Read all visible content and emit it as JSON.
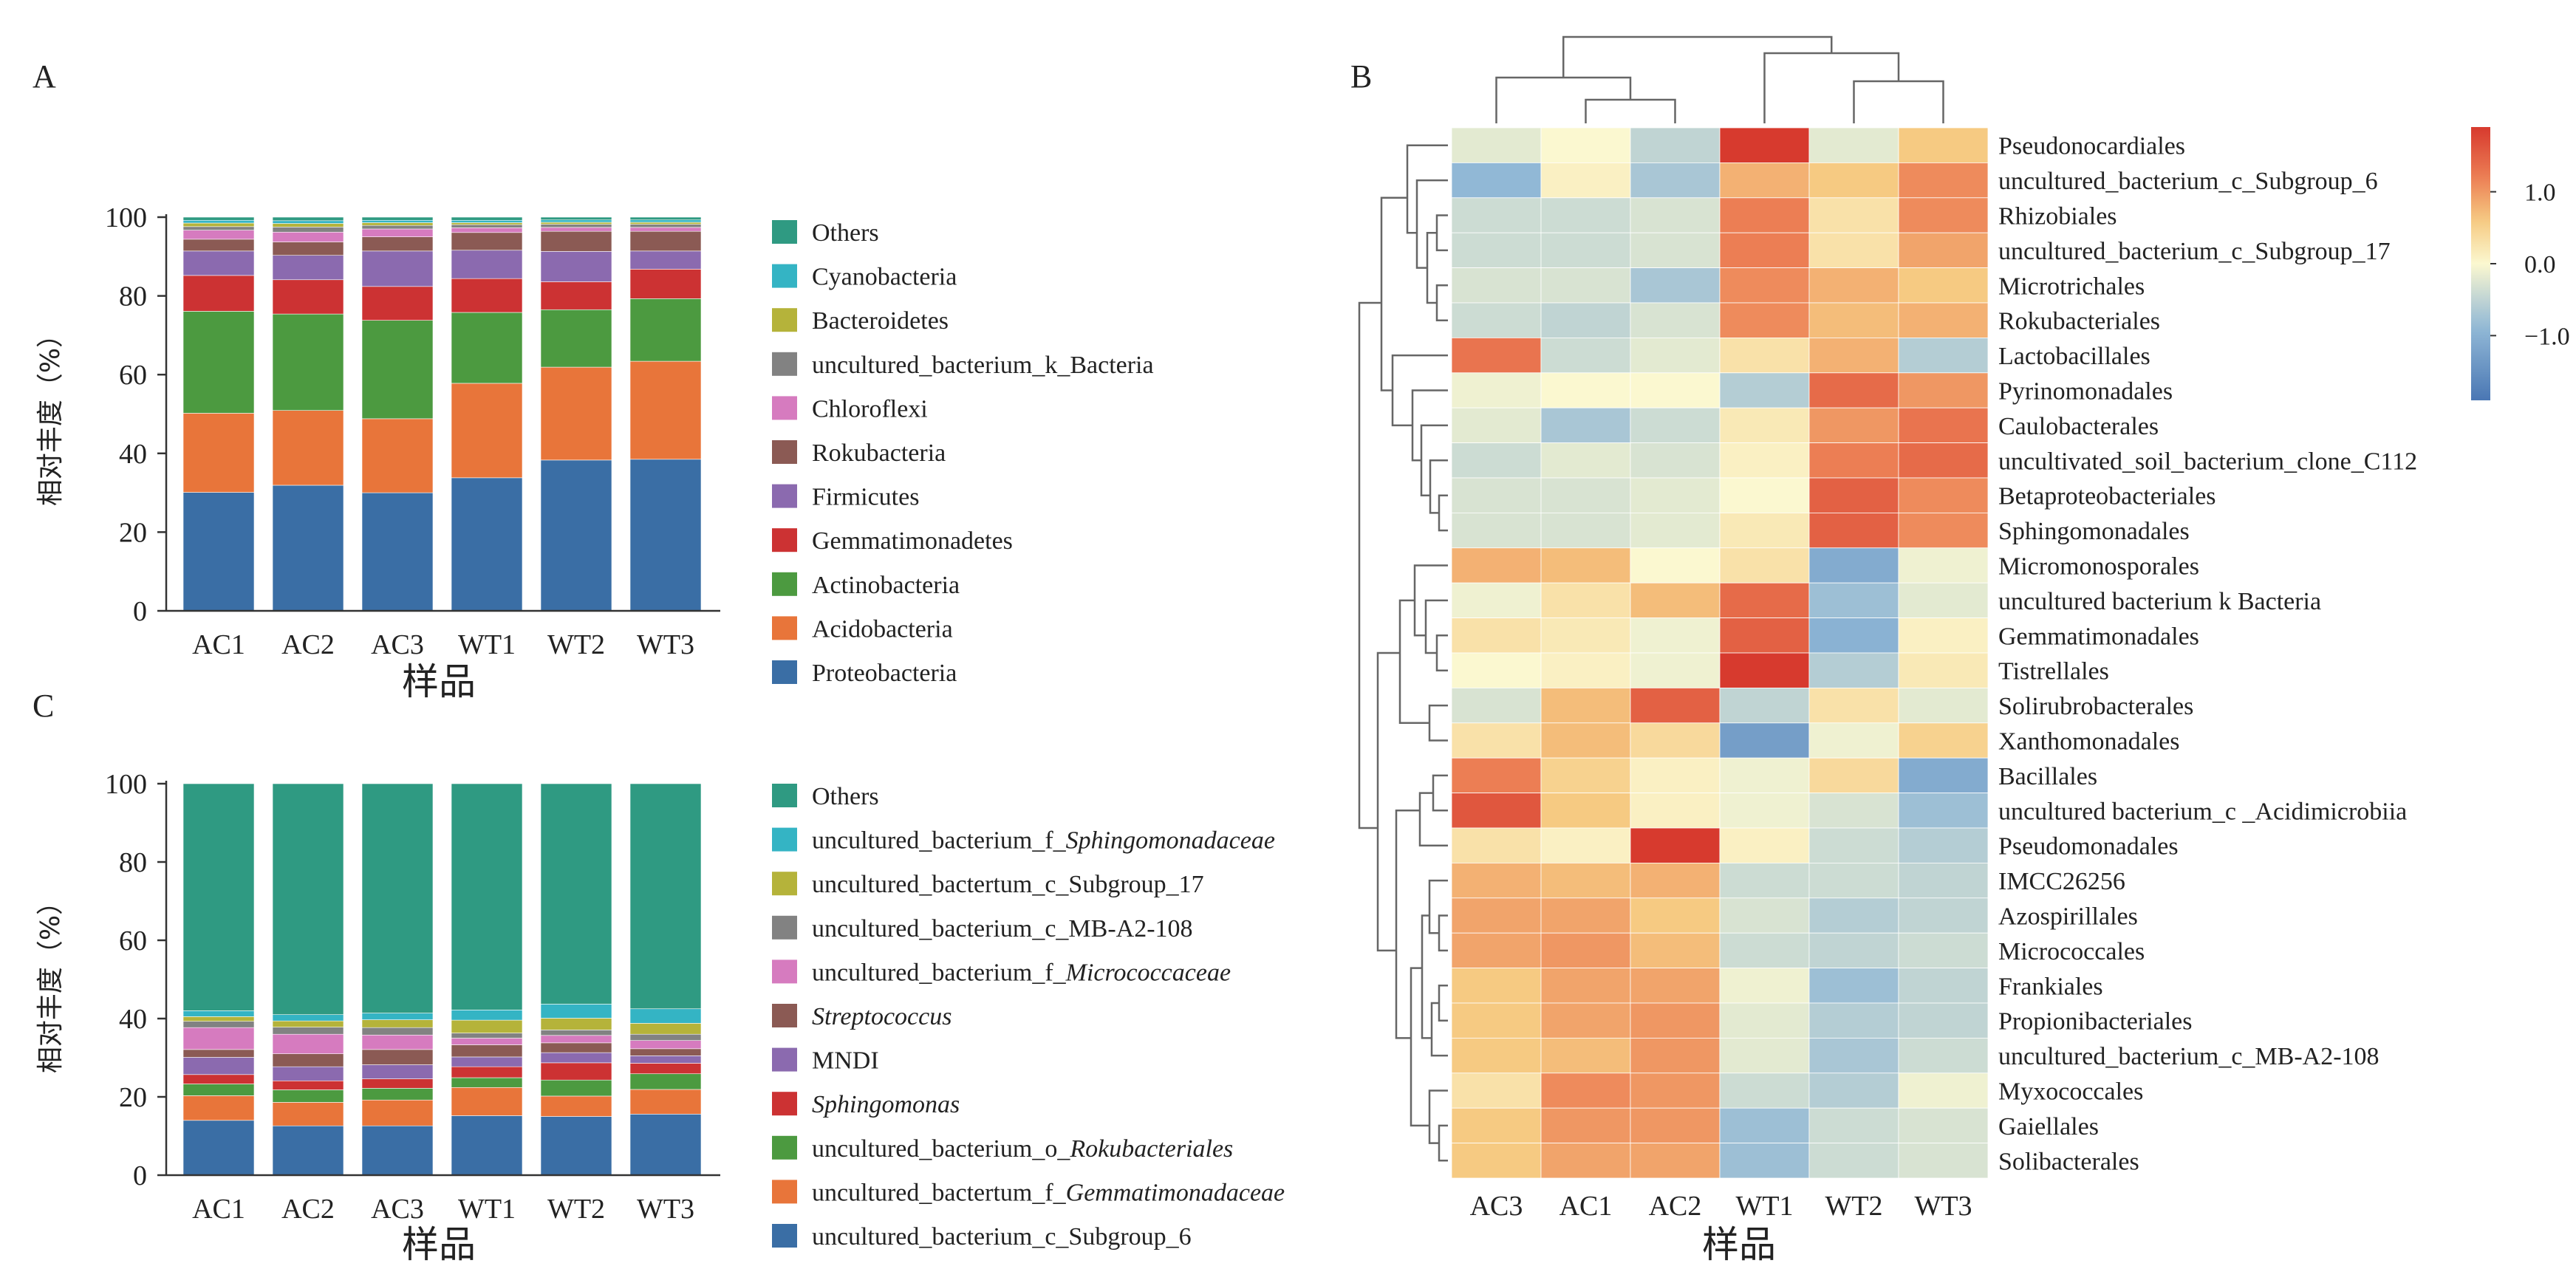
{
  "panels": {
    "a": "A",
    "b": "B",
    "c": "C"
  },
  "colors": {
    "stack": [
      "#3a6ea5",
      "#e8753a",
      "#4c9a40",
      "#cc3233",
      "#8b6aaf",
      "#8b5a54",
      "#d67bbf",
      "#828282",
      "#b5b33a",
      "#34b4c4",
      "#2f9a82"
    ],
    "heat_low": "#4a77b4",
    "heat_mid": "#fbf8d0",
    "heat_high": "#d73a2e"
  },
  "chart_data": [
    {
      "type": "bar",
      "stacked": true,
      "panel": "A",
      "categories": [
        "AC1",
        "AC2",
        "AC3",
        "WT1",
        "WT2",
        "WT3"
      ],
      "xlabel": "样品",
      "ylabel": "相对丰度（%）",
      "ylim": [
        0,
        100
      ],
      "yticks": [
        0,
        20,
        40,
        60,
        80,
        100
      ],
      "legend_position": "right",
      "series": [
        {
          "name": "Proteobacteria",
          "values": [
            30.1,
            31.9,
            30.0,
            33.8,
            38.3,
            38.5
          ]
        },
        {
          "name": "Acidobacteria",
          "values": [
            20.1,
            19.0,
            18.8,
            24.0,
            23.6,
            24.9
          ]
        },
        {
          "name": "Actinobacteria",
          "values": [
            25.9,
            24.5,
            25.0,
            18.0,
            14.6,
            15.9
          ]
        },
        {
          "name": "Gemmatimonadetes",
          "values": [
            9.1,
            8.7,
            8.6,
            8.6,
            7.1,
            7.5
          ]
        },
        {
          "name": "Firmicutes",
          "values": [
            6.2,
            6.2,
            9.0,
            7.2,
            7.7,
            4.6
          ]
        },
        {
          "name": "Rokubacteria",
          "values": [
            3.0,
            3.4,
            3.6,
            4.5,
            5.1,
            5.0
          ]
        },
        {
          "name": "Chloroflexi",
          "values": [
            2.3,
            2.5,
            2.0,
            1.2,
            1.0,
            1.0
          ]
        },
        {
          "name": "uncultured_bacterium_k_Bacteria",
          "values": [
            0.9,
            1.3,
            0.9,
            0.8,
            0.8,
            0.8
          ]
        },
        {
          "name": "Bacteroidetes",
          "values": [
            0.9,
            0.9,
            0.7,
            0.5,
            0.5,
            0.5
          ]
        },
        {
          "name": "Cyanobacteria",
          "values": [
            0.7,
            0.7,
            0.6,
            0.6,
            0.6,
            0.6
          ]
        },
        {
          "name": "Others",
          "values": [
            0.8,
            0.9,
            0.8,
            0.8,
            0.7,
            0.7
          ]
        }
      ]
    },
    {
      "type": "bar",
      "stacked": true,
      "panel": "C",
      "categories": [
        "AC1",
        "AC2",
        "AC3",
        "WT1",
        "WT2",
        "WT3"
      ],
      "xlabel": "样品",
      "ylabel": "相对丰度（%）",
      "ylim": [
        0,
        100
      ],
      "yticks": [
        0,
        20,
        40,
        60,
        80,
        100
      ],
      "legend_position": "right",
      "series": [
        {
          "name": "uncultured_bacterium_c_Subgroup_6",
          "prefix": "uncultured_bacterium_c_Subgroup_6",
          "italic": "",
          "values": [
            14.0,
            12.6,
            12.6,
            15.2,
            15.0,
            15.6
          ]
        },
        {
          "name": "uncultured_bactertum_f_Gemmatimonadaceae",
          "prefix": "uncultured_bactertum_f_",
          "italic": "Gemmatimonadaceae",
          "values": [
            6.3,
            6.0,
            6.6,
            7.2,
            5.2,
            6.3
          ]
        },
        {
          "name": "uncultured_bacterium_o_Rokubacteriales",
          "prefix": "uncultured_bacterium_o_",
          "italic": "Rokubacteriales",
          "values": [
            3.0,
            3.2,
            3.0,
            2.5,
            4.1,
            4.0
          ]
        },
        {
          "name": "Sphingomonas",
          "prefix": "",
          "italic": "Sphingomonas",
          "values": [
            2.4,
            2.3,
            2.4,
            2.8,
            4.4,
            2.7
          ]
        },
        {
          "name": "MNDI",
          "prefix": "MNDI",
          "italic": "",
          "values": [
            4.4,
            3.6,
            3.6,
            2.5,
            2.6,
            1.9
          ]
        },
        {
          "name": "Streptococcus",
          "prefix": "",
          "italic": "Streptococcus",
          "values": [
            2.0,
            3.3,
            3.9,
            3.1,
            2.5,
            1.8
          ]
        },
        {
          "name": "uncultured_bacterium_f_Micrococcaceae",
          "prefix": "uncultured_bacterium_f_",
          "italic": "Micrococcaceae",
          "values": [
            5.6,
            5.0,
            3.7,
            1.7,
            1.9,
            2.1
          ]
        },
        {
          "name": "uncultured_bacterium_c_MB-A2-108",
          "prefix": "uncultured_bacterium_c_MB-A2-108",
          "italic": "",
          "values": [
            1.6,
            1.8,
            1.9,
            1.3,
            1.4,
            1.6
          ]
        },
        {
          "name": "uncultured_bactertum_c_Subgroup_17",
          "prefix": "uncultured_bactertum_c_Subgroup_17",
          "italic": "",
          "values": [
            1.2,
            1.6,
            2.0,
            3.3,
            3.0,
            2.8
          ]
        },
        {
          "name": "uncultured_bacterium_f_Sphingomonadaceae",
          "prefix": "uncultured_bacterium_f_",
          "italic": "Sphingomonadaceae",
          "values": [
            1.5,
            1.6,
            1.7,
            2.6,
            3.6,
            3.7
          ]
        },
        {
          "name": "Others",
          "prefix": "Others",
          "italic": "",
          "values": [
            58.0,
            59.0,
            58.6,
            57.8,
            56.3,
            57.5
          ]
        }
      ]
    },
    {
      "type": "heatmap",
      "panel": "B",
      "x": [
        "AC3",
        "AC1",
        "AC2",
        "WT1",
        "WT2",
        "WT3"
      ],
      "xlabel": "样品",
      "y": [
        "Pseudonocardiales",
        "uncultured_bacterium_c_Subgroup_6",
        "Rhizobiales",
        "uncultured_bacterium_c_Subgroup_17",
        "Microtrichales",
        "Rokubacteriales",
        "Lactobacillales",
        "Pyrinomonadales",
        "Caulobacterales",
        "uncultivated_soil_bacterium_clone_C112",
        "Betaproteobacteriales",
        "Sphingomonadales",
        "Micromonosporales",
        "uncultured bacterium k Bacteria",
        "Gemmatimonadales",
        "Tistrellales",
        "Solirubrobacterales",
        "Xanthomonadales",
        "Bacillales",
        "uncultured bacterium_c _Acidimicrobiia",
        "Pseudomonadales",
        "IMCC26256",
        "Azospirillales",
        "Micrococcales",
        "Frankiales",
        "Propionibacteriales",
        "uncultured_bacterium_c_MB-A2-108",
        "Myxococcales",
        "Gaiellales",
        "Solibacterales"
      ],
      "values": [
        [
          -0.2,
          0.0,
          -0.5,
          1.9,
          -0.2,
          0.6
        ],
        [
          -0.9,
          0.1,
          -0.7,
          0.8,
          0.6,
          1.1
        ],
        [
          -0.4,
          -0.4,
          -0.3,
          1.2,
          0.3,
          1.1
        ],
        [
          -0.4,
          -0.4,
          -0.3,
          1.2,
          0.3,
          0.9
        ],
        [
          -0.3,
          -0.3,
          -0.7,
          1.1,
          0.8,
          0.6
        ],
        [
          -0.4,
          -0.5,
          -0.3,
          1.1,
          0.7,
          0.8
        ],
        [
          1.3,
          -0.4,
          -0.2,
          0.3,
          0.8,
          -0.6
        ],
        [
          -0.1,
          0.0,
          0.0,
          -0.6,
          1.4,
          1.0
        ],
        [
          -0.2,
          -0.7,
          -0.4,
          0.2,
          1.0,
          1.3
        ],
        [
          -0.4,
          -0.2,
          -0.3,
          0.1,
          1.2,
          1.4
        ],
        [
          -0.3,
          -0.3,
          -0.2,
          0.0,
          1.5,
          1.1
        ],
        [
          -0.3,
          -0.3,
          -0.2,
          0.2,
          1.5,
          1.1
        ],
        [
          0.8,
          0.7,
          0.0,
          0.3,
          -1.1,
          -0.1
        ],
        [
          -0.1,
          0.3,
          0.7,
          1.4,
          -0.8,
          -0.2
        ],
        [
          0.3,
          0.2,
          -0.1,
          1.5,
          -1.0,
          0.1
        ],
        [
          0.0,
          0.1,
          -0.1,
          1.9,
          -0.6,
          0.2
        ],
        [
          -0.3,
          0.7,
          1.5,
          -0.5,
          0.3,
          -0.2
        ],
        [
          0.3,
          0.7,
          0.4,
          -1.3,
          -0.1,
          0.5
        ],
        [
          1.2,
          0.5,
          0.1,
          -0.1,
          0.4,
          -1.1
        ],
        [
          1.6,
          0.6,
          0.1,
          -0.1,
          -0.3,
          -0.8
        ],
        [
          0.3,
          0.1,
          1.9,
          0.1,
          -0.4,
          -0.6
        ],
        [
          0.8,
          0.7,
          0.8,
          -0.4,
          -0.4,
          -0.5
        ],
        [
          0.9,
          0.9,
          0.6,
          -0.3,
          -0.6,
          -0.5
        ],
        [
          0.9,
          1.0,
          0.7,
          -0.4,
          -0.5,
          -0.4
        ],
        [
          0.6,
          0.9,
          0.9,
          -0.1,
          -0.8,
          -0.5
        ],
        [
          0.6,
          0.9,
          1.0,
          -0.2,
          -0.6,
          -0.5
        ],
        [
          0.6,
          0.7,
          1.0,
          -0.2,
          -0.7,
          -0.4
        ],
        [
          0.3,
          1.1,
          1.0,
          -0.4,
          -0.6,
          -0.1
        ],
        [
          0.6,
          1.0,
          1.0,
          -0.8,
          -0.4,
          -0.3
        ],
        [
          0.6,
          0.9,
          0.9,
          -0.8,
          -0.4,
          -0.3
        ]
      ],
      "colorbar_ticks": [
        1.0,
        0.0,
        -1.0
      ],
      "colorbar_tick_labels": [
        "1.0",
        "0.0",
        "−1.0"
      ],
      "colorbar_range": [
        -1.9,
        1.9
      ],
      "colorbar_position": "top-right",
      "dendrograms": "row and column"
    }
  ]
}
